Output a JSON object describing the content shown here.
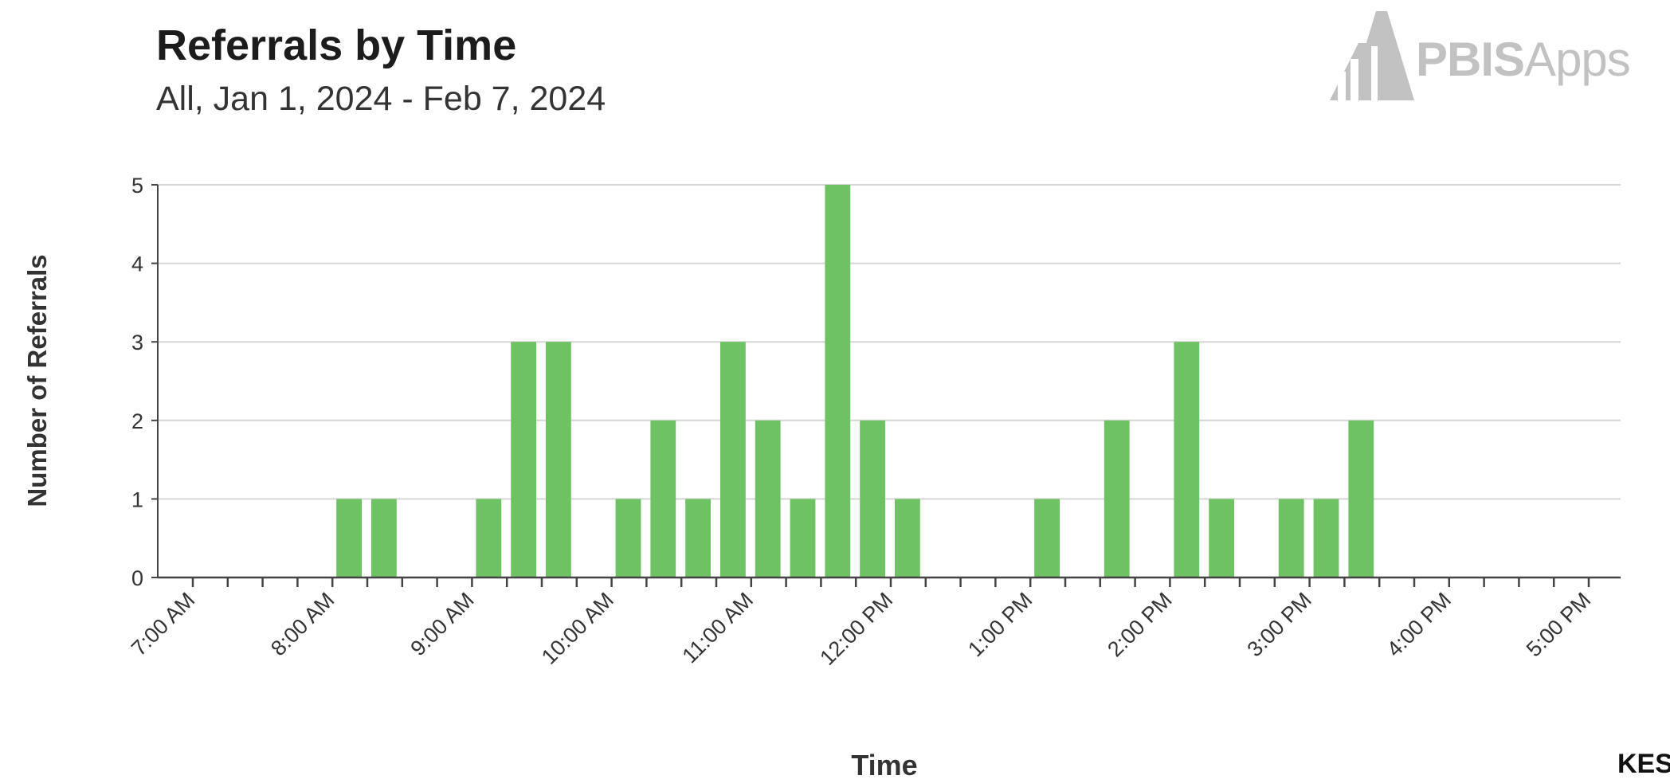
{
  "header": {
    "title": "Referrals by Time",
    "subtitle": "All, Jan 1, 2024 - Feb 7, 2024"
  },
  "logo": {
    "text_bold": "PBIS",
    "text_light": "Apps"
  },
  "stray_text": "KES",
  "colors": {
    "bar": "#6ec264",
    "grid": "#d6d6d6",
    "axis": "#444444",
    "logo": "#c2c2c2"
  },
  "chart_data": {
    "type": "bar",
    "title": "Referrals by Time",
    "subtitle": "All, Jan 1, 2024 - Feb 7, 2024",
    "xlabel": "Time",
    "ylabel": "Number of Referrals",
    "ylim": [
      0,
      5
    ],
    "yticks": [
      0,
      1,
      2,
      3,
      4,
      5
    ],
    "grid": true,
    "legend": "none",
    "bin_minutes": 15,
    "x_tick_labels": [
      "7:00 AM",
      "8:00 AM",
      "9:00 AM",
      "10:00 AM",
      "11:00 AM",
      "12:00 PM",
      "1:00 PM",
      "2:00 PM",
      "3:00 PM",
      "4:00 PM",
      "5:00 PM"
    ],
    "categories": [
      "7:00 AM",
      "7:15 AM",
      "7:30 AM",
      "7:45 AM",
      "8:00 AM",
      "8:15 AM",
      "8:30 AM",
      "8:45 AM",
      "9:00 AM",
      "9:15 AM",
      "9:30 AM",
      "9:45 AM",
      "10:00 AM",
      "10:15 AM",
      "10:30 AM",
      "10:45 AM",
      "11:00 AM",
      "11:15 AM",
      "11:30 AM",
      "11:45 AM",
      "12:00 PM",
      "12:15 PM",
      "12:30 PM",
      "12:45 PM",
      "1:00 PM",
      "1:15 PM",
      "1:30 PM",
      "1:45 PM",
      "2:00 PM",
      "2:15 PM",
      "2:30 PM",
      "2:45 PM",
      "3:00 PM",
      "3:15 PM",
      "3:30 PM",
      "3:45 PM",
      "4:00 PM",
      "4:15 PM",
      "4:30 PM",
      "4:45 PM"
    ],
    "values": [
      0,
      0,
      0,
      0,
      1,
      1,
      0,
      0,
      1,
      3,
      3,
      0,
      1,
      2,
      1,
      3,
      2,
      1,
      5,
      2,
      1,
      0,
      0,
      0,
      1,
      0,
      2,
      0,
      3,
      1,
      0,
      1,
      1,
      2,
      0,
      0,
      0,
      0,
      0,
      0
    ]
  }
}
